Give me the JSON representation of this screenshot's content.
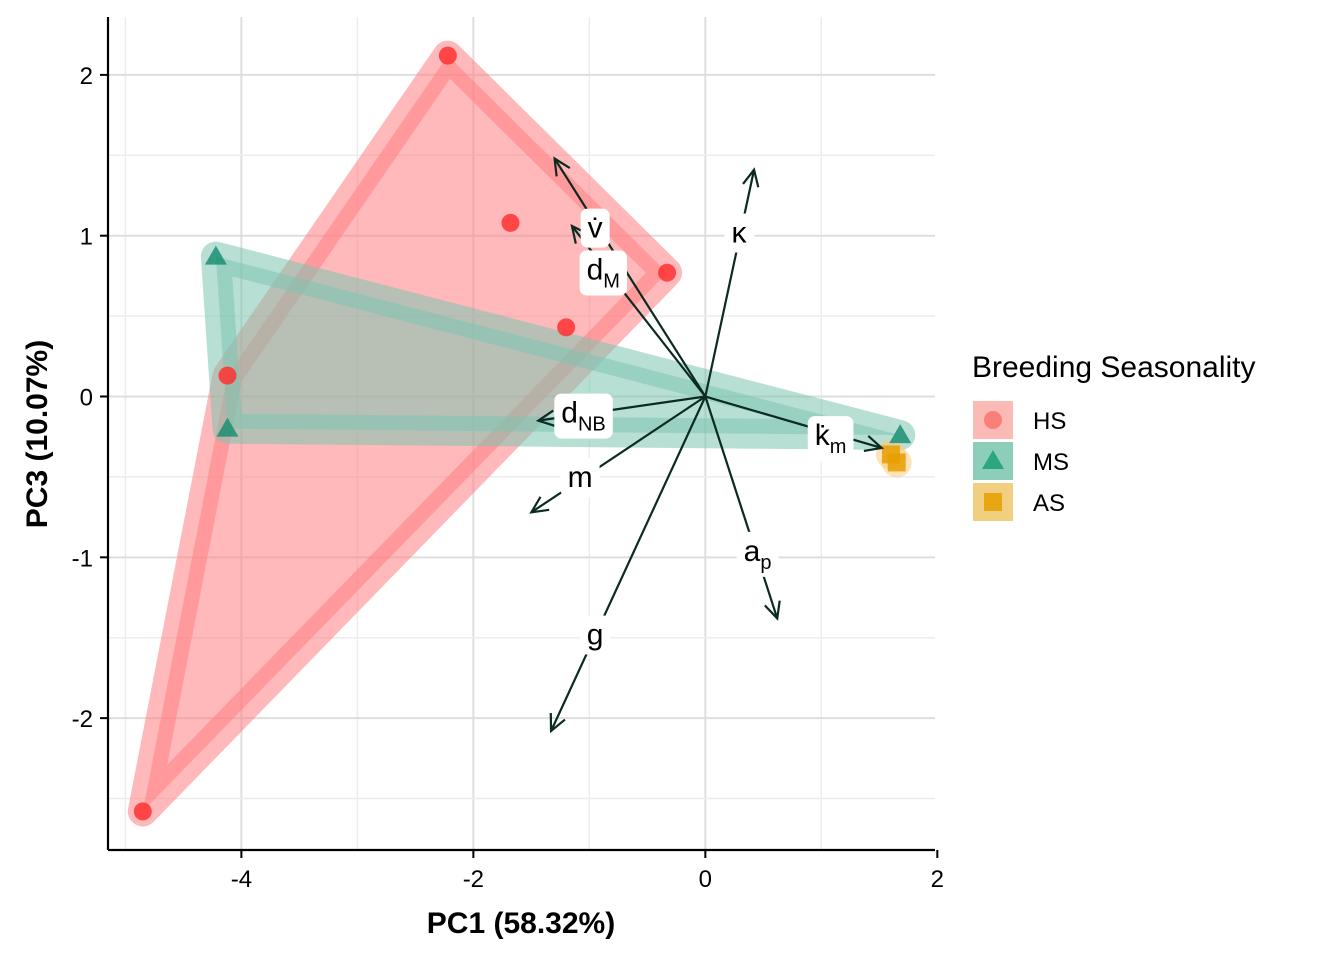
{
  "chart_data": {
    "type": "scatter",
    "title": "",
    "xlabel": "PC1 (58.32%)",
    "ylabel": "PC3 (10.07%)",
    "xlim": [
      -5.15,
      1.98
    ],
    "ylim": [
      -2.82,
      2.36
    ],
    "x_ticks": [
      -4,
      -2,
      0,
      2
    ],
    "y_ticks": [
      -2,
      -1,
      0,
      1,
      2
    ],
    "x_tick_labels": [
      "-4",
      "-2",
      "0",
      "2"
    ],
    "y_tick_labels": [
      "-2",
      "-1",
      "0",
      "1",
      "2"
    ],
    "grid": true,
    "legend": {
      "title": "Breeding Seasonality",
      "position": "right",
      "entries": [
        {
          "label": "HS",
          "shape": "circle",
          "color": "#F8766D"
        },
        {
          "label": "MS",
          "shape": "triangle",
          "color": "#1B9E77"
        },
        {
          "label": "AS",
          "shape": "square",
          "color": "#E69F00"
        }
      ]
    },
    "series": [
      {
        "group": "HS",
        "shape": "circle",
        "color": "#FF3030",
        "hull_color": "#FF7F84",
        "points": [
          [
            -2.22,
            2.12
          ],
          [
            -1.68,
            1.08
          ],
          [
            -0.33,
            0.77
          ],
          [
            -1.2,
            0.43
          ],
          [
            -4.12,
            0.13
          ],
          [
            -4.85,
            -2.58
          ]
        ]
      },
      {
        "group": "MS",
        "shape": "triangle",
        "color": "#1B8F72",
        "hull_color": "#7EC4B0",
        "points": [
          [
            -4.22,
            0.87
          ],
          [
            -4.12,
            -0.2
          ],
          [
            1.68,
            -0.24
          ]
        ]
      },
      {
        "group": "AS",
        "shape": "square",
        "color": "#E69F00",
        "hull_color": "#F7CD80",
        "points": [
          [
            1.6,
            -0.36
          ],
          [
            1.65,
            -0.41
          ]
        ]
      }
    ],
    "loadings": [
      {
        "main": "v̇",
        "sub": "",
        "end": [
          -1.3,
          1.48
        ],
        "label_at": [
          -0.95,
          1.05
        ]
      },
      {
        "main": "d",
        "sub": "M",
        "end": [
          -1.15,
          1.06
        ],
        "label_at": [
          -0.88,
          0.79
        ]
      },
      {
        "main": "κ",
        "sub": "",
        "end": [
          0.42,
          1.41
        ],
        "label_at": [
          0.29,
          1.02
        ]
      },
      {
        "main": "d",
        "sub": "NB",
        "end": [
          -1.44,
          -0.15
        ],
        "label_at": [
          -1.05,
          -0.1
        ]
      },
      {
        "main": "k̇",
        "sub": "m",
        "end": [
          1.52,
          -0.32
        ],
        "label_at": [
          1.08,
          -0.24
        ]
      },
      {
        "main": "m",
        "sub": "",
        "end": [
          -1.5,
          -0.72
        ],
        "label_at": [
          -1.08,
          -0.5
        ]
      },
      {
        "main": "a",
        "sub": "p",
        "end": [
          0.62,
          -1.38
        ],
        "label_at": [
          0.45,
          -0.96
        ]
      },
      {
        "main": "g",
        "sub": "",
        "end": [
          -1.33,
          -2.08
        ],
        "label_at": [
          -0.95,
          -1.48
        ]
      }
    ]
  }
}
